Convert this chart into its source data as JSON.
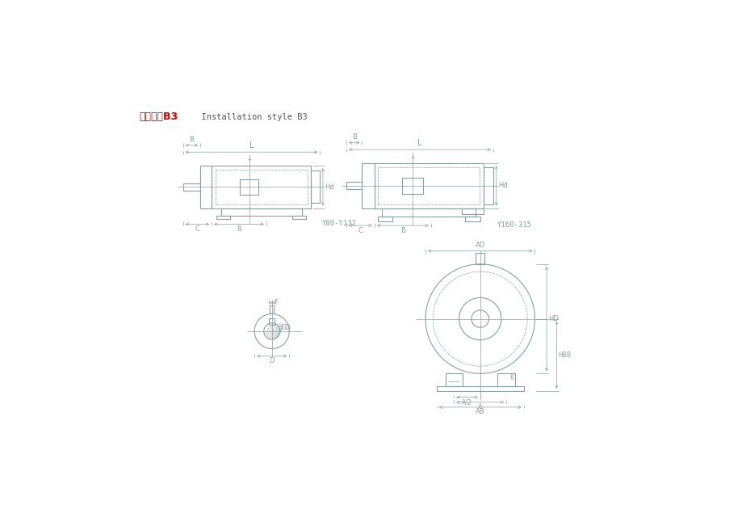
{
  "title_chinese": "安装形式B3",
  "title_english": "  Installation style B3",
  "title_chinese_color": "#cc0000",
  "title_english_color": "#555555",
  "bg_color": "#ffffff",
  "line_color": "#8aa0a0",
  "dim_color": "#8aa0a0",
  "motor1_label": "Y80-Y132",
  "motor2_label": "Y160-315",
  "lw": 0.8,
  "dlw": 0.5
}
